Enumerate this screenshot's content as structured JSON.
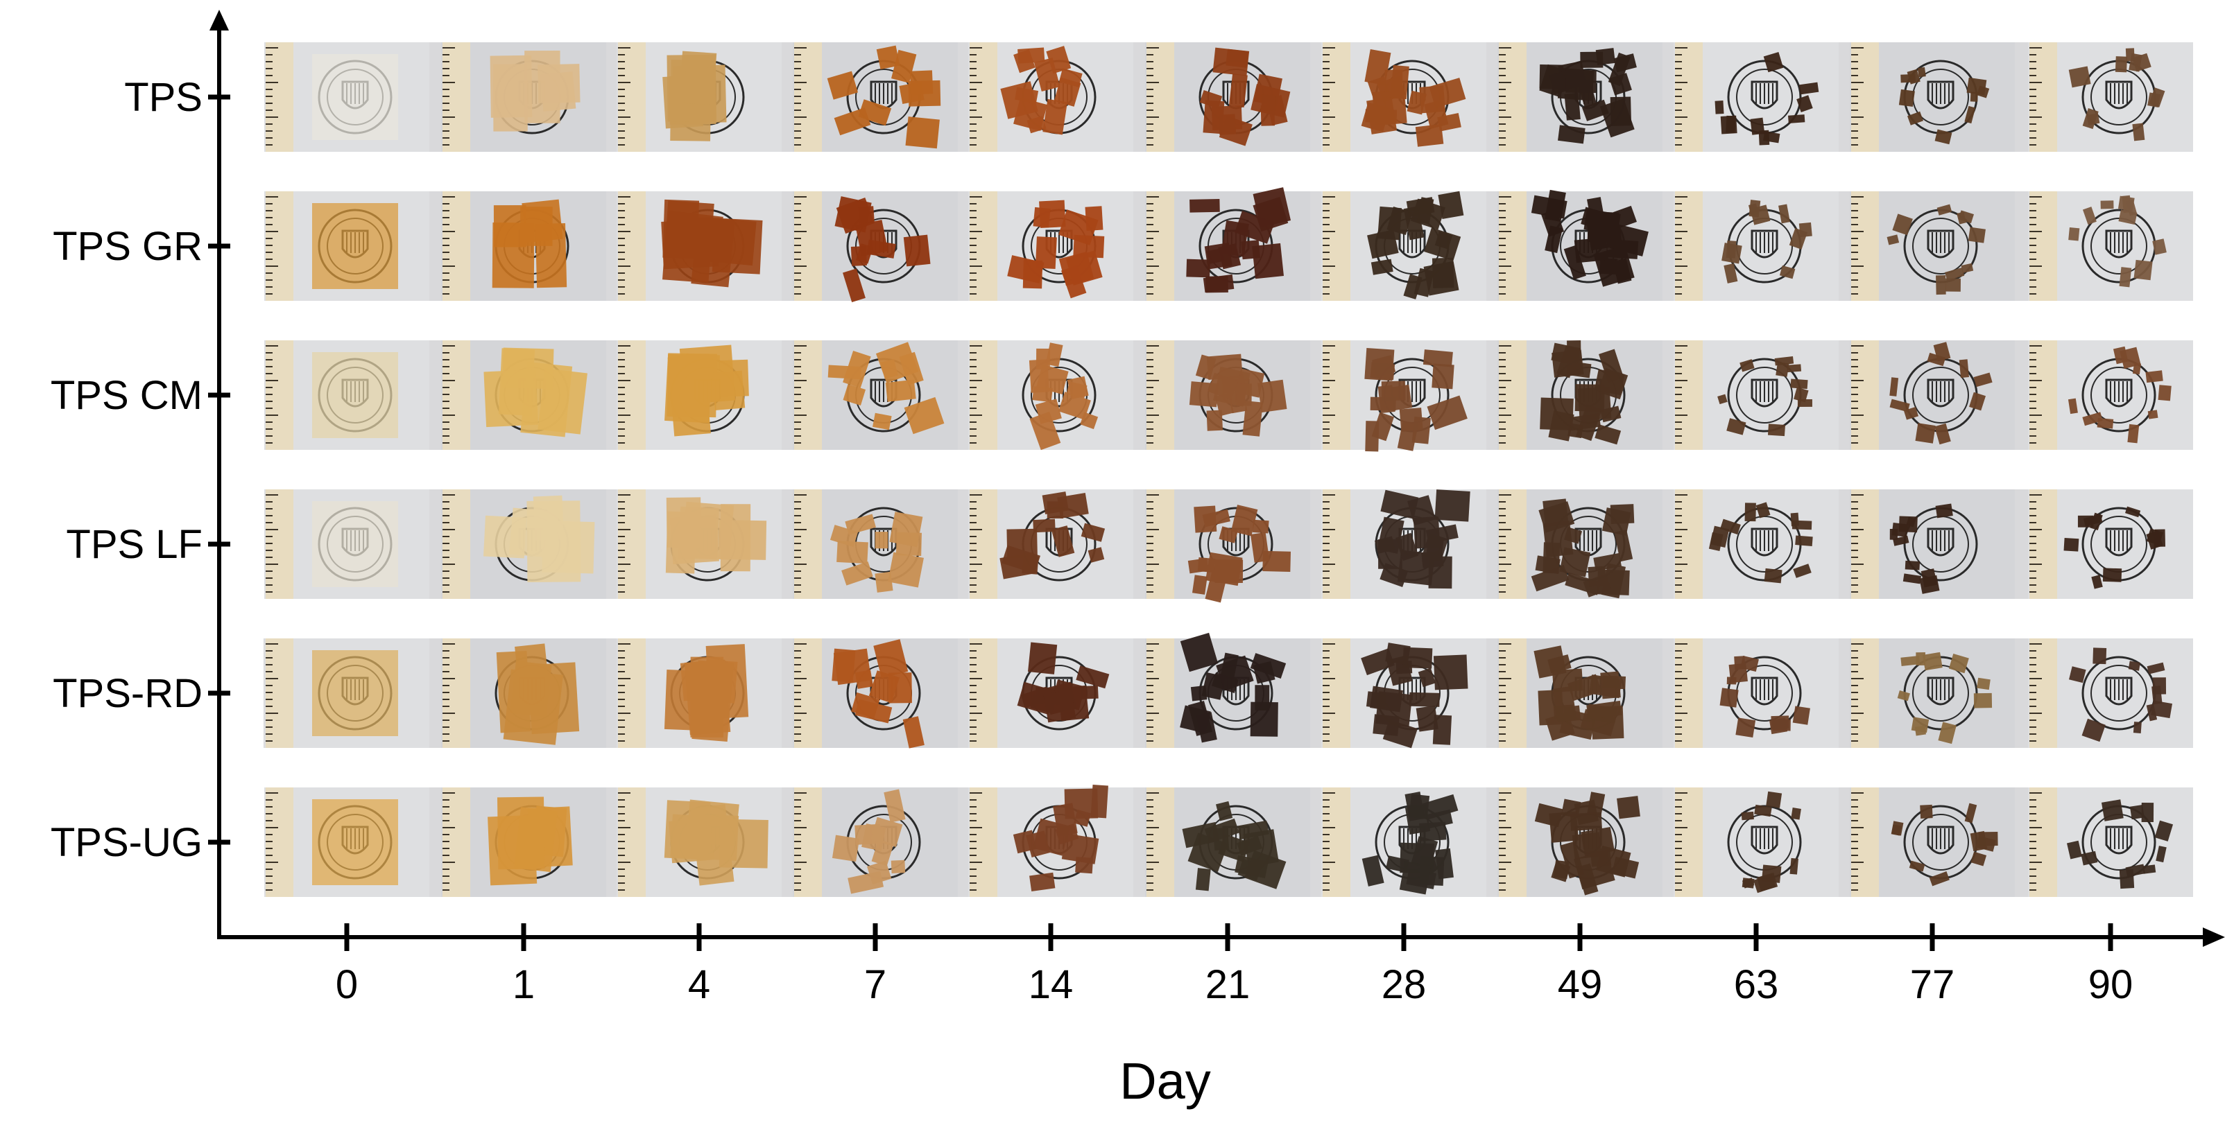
{
  "figure": {
    "x_axis_title": "Day",
    "days": [
      "0",
      "1",
      "4",
      "7",
      "14",
      "21",
      "28",
      "49",
      "63",
      "77",
      "90"
    ],
    "samples": [
      "TPS",
      "TPS GR",
      "TPS CM",
      "TPS LF",
      "TPS-RD",
      "TPS-UG"
    ],
    "colors": {
      "strip_background": "#d9d9db",
      "ruler": "#e8dcc0",
      "ruler_marks": "#3a3226",
      "emblem": "#2a2a2a"
    },
    "sample_tones": [
      [
        "#e9e6dc",
        "#dcb98a",
        "#c99a55",
        "#b8641f",
        "#a84e1c",
        "#8f3e17",
        "#9a4c1e",
        "#2e2018",
        "#3a2417",
        "#5a3a22",
        "#6b4a30"
      ],
      [
        "#d99a3a",
        "#c8731f",
        "#9a4214",
        "#8f3510",
        "#a84516",
        "#4e2216",
        "#3a2a1e",
        "#2a1a14",
        "#6a4a30",
        "#6a4a30",
        "#7a5a40"
      ],
      [
        "#e4d4a8",
        "#e0b25a",
        "#d79a3c",
        "#c9843a",
        "#b66f36",
        "#8e5530",
        "#7a4a2c",
        "#4a3020",
        "#5a3a24",
        "#6a4228",
        "#7a4a2c"
      ],
      [
        "#e8e2d2",
        "#e6cfa0",
        "#d9b074",
        "#c88f52",
        "#6e3a20",
        "#8a4e2a",
        "#3a2a22",
        "#4a3222",
        "#4a3020",
        "#3a2418",
        "#3a2418"
      ],
      [
        "#dcb060",
        "#c8893c",
        "#c27a34",
        "#b0561e",
        "#5a2a18",
        "#2a1e1a",
        "#3e2a20",
        "#5a3a24",
        "#6a4028",
        "#8a6a40",
        "#4a3024"
      ],
      [
        "#e0a84a",
        "#d6953a",
        "#cfa05a",
        "#c89660",
        "#7a4024",
        "#3a3024",
        "#302a24",
        "#4a3020",
        "#4a3020",
        "#5a3a24",
        "#3a2a20"
      ]
    ]
  }
}
